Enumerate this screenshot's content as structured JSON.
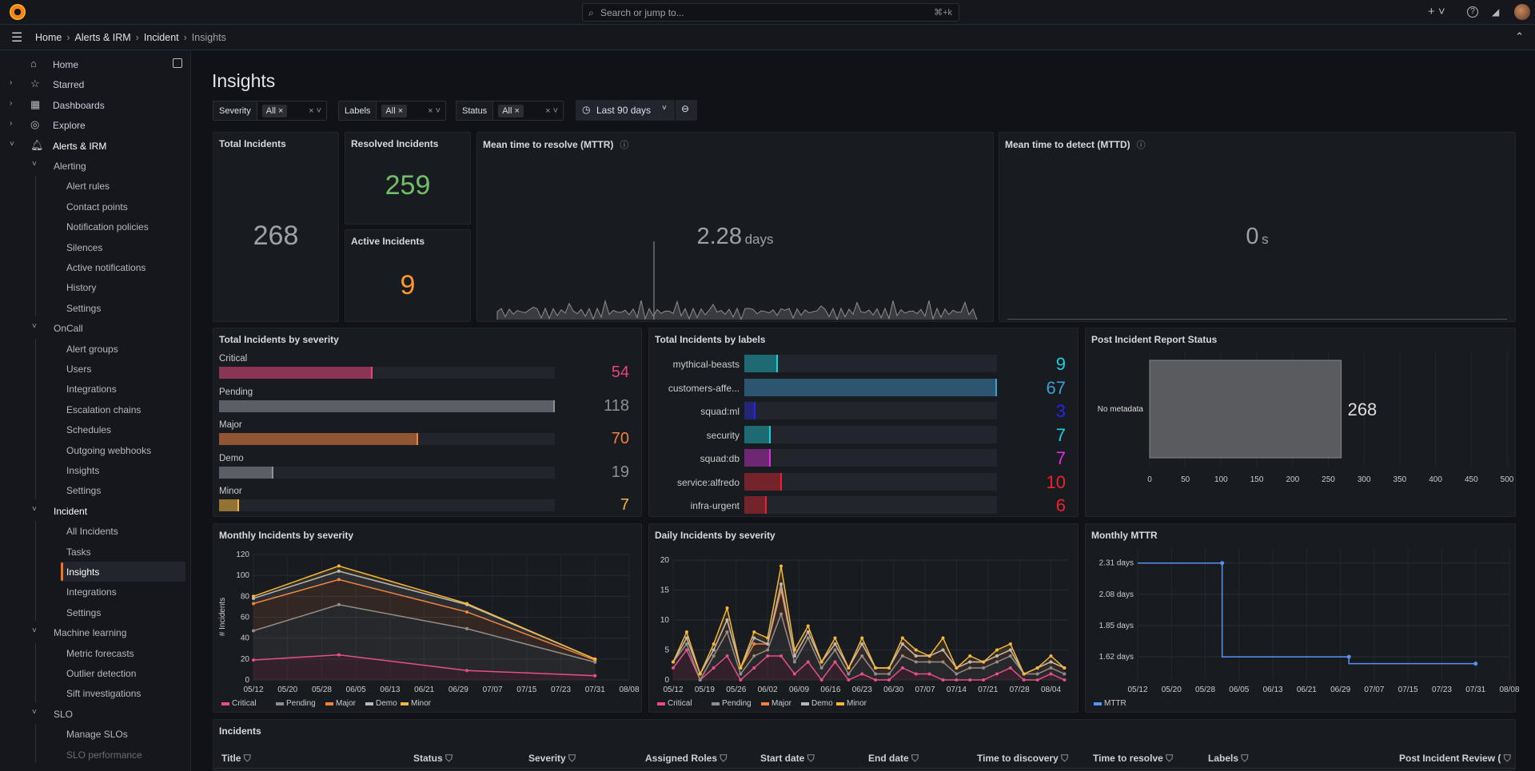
{
  "topbar": {
    "search_placeholder": "Search or jump to...",
    "shortcut": "⌘+k",
    "new_label": "+ ˅",
    "help_icon": "help-icon",
    "news_icon": "rss-icon"
  },
  "breadcrumb": [
    "Home",
    "Alerts & IRM",
    "Incident",
    "Insights"
  ],
  "sidebar": {
    "items": [
      {
        "label": "Home",
        "level": 0,
        "icon": "⌂"
      },
      {
        "label": "Starred",
        "level": 0,
        "icon": "☆",
        "chev": "›"
      },
      {
        "label": "Dashboards",
        "level": 0,
        "icon": "▦",
        "chev": "›"
      },
      {
        "label": "Explore",
        "level": 0,
        "icon": "◎",
        "chev": "›"
      },
      {
        "label": "Alerts & IRM",
        "level": 0,
        "icon": "🔔︎",
        "chev": "˅",
        "bold": true
      },
      {
        "label": "Alerting",
        "level": 1,
        "chev": "˅"
      },
      {
        "label": "Alert rules",
        "level": 2
      },
      {
        "label": "Contact points",
        "level": 2
      },
      {
        "label": "Notification policies",
        "level": 2
      },
      {
        "label": "Silences",
        "level": 2
      },
      {
        "label": "Active notifications",
        "level": 2
      },
      {
        "label": "History",
        "level": 2
      },
      {
        "label": "Settings",
        "level": 2
      },
      {
        "label": "OnCall",
        "level": 1,
        "chev": "˅"
      },
      {
        "label": "Alert groups",
        "level": 2
      },
      {
        "label": "Users",
        "level": 2
      },
      {
        "label": "Integrations",
        "level": 2
      },
      {
        "label": "Escalation chains",
        "level": 2
      },
      {
        "label": "Schedules",
        "level": 2
      },
      {
        "label": "Outgoing webhooks",
        "level": 2
      },
      {
        "label": "Insights",
        "level": 2
      },
      {
        "label": "Settings",
        "level": 2
      },
      {
        "label": "Incident",
        "level": 1,
        "chev": "˅",
        "bold": true
      },
      {
        "label": "All Incidents",
        "level": 2
      },
      {
        "label": "Tasks",
        "level": 2
      },
      {
        "label": "Insights",
        "level": 2,
        "active": true
      },
      {
        "label": "Integrations",
        "level": 2
      },
      {
        "label": "Settings",
        "level": 2
      },
      {
        "label": "Machine learning",
        "level": 1,
        "chev": "˅"
      },
      {
        "label": "Metric forecasts",
        "level": 2
      },
      {
        "label": "Outlier detection",
        "level": 2
      },
      {
        "label": "Sift investigations",
        "level": 2
      },
      {
        "label": "SLO",
        "level": 1,
        "chev": "˅"
      },
      {
        "label": "Manage SLOs",
        "level": 2
      },
      {
        "label": "SLO performance",
        "level": 2
      }
    ]
  },
  "page": {
    "title": "Insights"
  },
  "filters": [
    {
      "key": "Severity",
      "value": "All"
    },
    {
      "key": "Labels",
      "value": "All"
    },
    {
      "key": "Status",
      "value": "All"
    }
  ],
  "time_range": "Last 90 days",
  "stats": {
    "total": {
      "title": "Total Incidents",
      "value": "268"
    },
    "resolved": {
      "title": "Resolved Incidents",
      "value": "259",
      "color": "#73bf69"
    },
    "active": {
      "title": "Active Incidents",
      "value": "9",
      "color": "#ff9830"
    },
    "mttr": {
      "title": "Mean time to resolve (MTTR)",
      "value": "2.28",
      "unit": "days"
    },
    "mttd": {
      "title": "Mean time to detect (MTTD)",
      "value": "0",
      "unit": "s"
    }
  },
  "severity_panel": {
    "title": "Total Incidents by severity",
    "max": 118,
    "items": [
      {
        "label": "Critical",
        "value": 54,
        "color": "#e8447a"
      },
      {
        "label": "Pending",
        "value": 118,
        "color": "#8e9099"
      },
      {
        "label": "Major",
        "value": 70,
        "color": "#f2823a"
      },
      {
        "label": "Demo",
        "value": 19,
        "color": "#8e9099"
      },
      {
        "label": "Minor",
        "value": 7,
        "color": "#f5b73b"
      }
    ]
  },
  "labels_panel": {
    "title": "Total Incidents by labels",
    "max": 67,
    "items": [
      {
        "label": "mythical-beasts",
        "value": 9,
        "color": "#1ad1e0"
      },
      {
        "label": "customers-affe...",
        "value": 67,
        "color": "#3b9ed6"
      },
      {
        "label": "squad:ml",
        "value": 3,
        "color": "#2525f0"
      },
      {
        "label": "security",
        "value": 7,
        "color": "#1ad1e0"
      },
      {
        "label": "squad:db",
        "value": 7,
        "color": "#e02ee0"
      },
      {
        "label": "service:alfredo",
        "value": 10,
        "color": "#f0202e"
      },
      {
        "label": "infra-urgent",
        "value": 6,
        "color": "#f0202e"
      }
    ]
  },
  "chart_data": [
    {
      "id": "pir",
      "type": "bar",
      "orientation": "horizontal",
      "title": "Post Incident Report Status",
      "categories": [
        "No metadata"
      ],
      "values": [
        268
      ],
      "xlim": [
        0,
        500
      ],
      "xticks": [
        0,
        50,
        100,
        150,
        200,
        250,
        300,
        350,
        400,
        450,
        500
      ],
      "color": "#5a5b5e"
    },
    {
      "id": "monthly",
      "type": "area",
      "stacked": true,
      "title": "Monthly Incidents by severity",
      "ylabel": "# Incidents",
      "ylim": [
        0,
        120
      ],
      "yticks": [
        0,
        20,
        40,
        60,
        80,
        100,
        120
      ],
      "xlim": [
        "05/12",
        "08/08"
      ],
      "xticks": [
        "05/12",
        "05/20",
        "05/28",
        "06/05",
        "06/13",
        "06/21",
        "06/29",
        "07/07",
        "07/15",
        "07/23",
        "07/31",
        "08/08"
      ],
      "x": [
        "05/12",
        "06/01",
        "07/01",
        "07/31"
      ],
      "series": [
        {
          "name": "Critical",
          "color": "#ec4d86",
          "values": [
            19,
            24,
            9,
            4
          ]
        },
        {
          "name": "Pending",
          "color": "#8e8e8e",
          "values": [
            28,
            48,
            40,
            13
          ]
        },
        {
          "name": "Major",
          "color": "#f2823a",
          "values": [
            26,
            24,
            16,
            2
          ]
        },
        {
          "name": "Demo",
          "color": "#b8b8b8",
          "values": [
            5,
            8,
            7,
            1
          ]
        },
        {
          "name": "Minor",
          "color": "#f5b73b",
          "values": [
            2,
            5,
            1,
            0
          ]
        }
      ]
    },
    {
      "id": "daily",
      "type": "area",
      "stacked": true,
      "title": "Daily Incidents by severity",
      "ylim": [
        0,
        20
      ],
      "yticks": [
        0,
        5,
        10,
        15,
        20
      ],
      "xlim": [
        "05/12",
        "08/08"
      ],
      "xticks": [
        "05/12",
        "05/19",
        "05/26",
        "06/02",
        "06/09",
        "06/16",
        "06/23",
        "06/30",
        "07/07",
        "07/14",
        "07/21",
        "07/28",
        "08/04"
      ],
      "x": [
        "05/12",
        "05/15",
        "05/18",
        "05/21",
        "05/24",
        "05/27",
        "05/30",
        "06/02",
        "06/05",
        "06/08",
        "06/11",
        "06/14",
        "06/17",
        "06/20",
        "06/23",
        "06/26",
        "06/29",
        "07/02",
        "07/05",
        "07/08",
        "07/11",
        "07/14",
        "07/17",
        "07/20",
        "07/23",
        "07/26",
        "07/29",
        "08/01",
        "08/04",
        "08/07"
      ],
      "series": [
        {
          "name": "Critical",
          "color": "#ec4d86",
          "values": [
            2,
            5,
            0,
            2,
            4,
            0,
            2,
            4,
            4,
            1,
            3,
            0,
            3,
            0,
            1,
            0,
            0,
            2,
            1,
            1,
            0,
            0,
            0,
            0,
            1,
            2,
            0,
            0,
            1,
            0
          ]
        },
        {
          "name": "Pending",
          "color": "#8e8e8e",
          "values": [
            1,
            1,
            0,
            2,
            4,
            1,
            2,
            1,
            7,
            2,
            4,
            2,
            2,
            1,
            3,
            1,
            1,
            2,
            2,
            2,
            3,
            1,
            2,
            2,
            2,
            2,
            1,
            1,
            1,
            1
          ]
        },
        {
          "name": "Major",
          "color": "#f2823a",
          "values": [
            0,
            1,
            1,
            1,
            2,
            1,
            2,
            1,
            4,
            1,
            1,
            1,
            1,
            1,
            2,
            1,
            1,
            2,
            1,
            1,
            2,
            1,
            1,
            1,
            1,
            1,
            0,
            1,
            1,
            1
          ]
        },
        {
          "name": "Demo",
          "color": "#b8b8b8",
          "values": [
            0,
            0,
            0,
            0,
            0,
            0,
            1,
            0,
            1,
            0,
            0,
            0,
            0,
            0,
            0,
            0,
            0,
            0,
            0,
            0,
            0,
            0,
            0,
            0,
            0,
            0,
            0,
            0,
            0,
            0
          ]
        },
        {
          "name": "Minor",
          "color": "#f5b73b",
          "values": [
            0,
            1,
            0,
            1,
            2,
            0,
            1,
            1,
            3,
            1,
            1,
            0,
            1,
            0,
            1,
            0,
            0,
            1,
            1,
            0,
            2,
            0,
            1,
            0,
            1,
            1,
            0,
            0,
            1,
            0
          ]
        }
      ]
    },
    {
      "id": "mttr",
      "type": "line",
      "step": true,
      "title": "Monthly MTTR",
      "unit": "days",
      "ylim": [
        1.45,
        2.42
      ],
      "yticks": [
        1.62,
        1.85,
        2.08,
        2.31
      ],
      "ytick_labels": [
        "1.62 days",
        "1.85 days",
        "2.08 days",
        "2.31 days"
      ],
      "xlim": [
        "05/12",
        "08/08"
      ],
      "xticks": [
        "05/12",
        "05/20",
        "05/28",
        "06/05",
        "06/13",
        "06/21",
        "06/29",
        "07/07",
        "07/15",
        "07/23",
        "07/31",
        "08/08"
      ],
      "x": [
        "06/01",
        "07/01",
        "07/31"
      ],
      "series": [
        {
          "name": "MTTR",
          "color": "#5794f2",
          "values": [
            2.31,
            1.62,
            1.57
          ]
        }
      ]
    }
  ],
  "incidents": {
    "title": "Incidents",
    "columns": [
      "Title",
      "Status",
      "Severity",
      "Assigned Roles",
      "Start date",
      "End date",
      "Time to discovery",
      "Time to resolve",
      "Labels",
      "Post Incident Review ("
    ]
  }
}
